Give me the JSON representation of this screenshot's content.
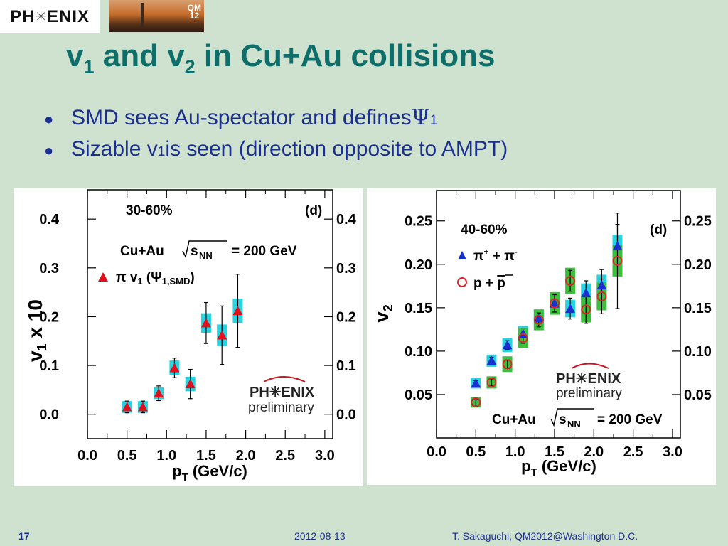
{
  "header": {
    "logo_left": "PH",
    "logo_star": "✳",
    "logo_right": "ENIX",
    "photo_label_1": "QM",
    "photo_label_2": "12"
  },
  "title": {
    "v1": "v",
    "sub1": "1",
    "and": " and v",
    "sub2": "2",
    "rest": " in Cu+Au collisions"
  },
  "bullets": [
    {
      "pre": "SMD sees Au-spectator and defines ",
      "psi": "Ψ",
      "sub": "1",
      "post": ""
    },
    {
      "pre": "Sizable v",
      "psi": "",
      "sub": "1",
      "post": " is seen (direction opposite to AMPT)"
    }
  ],
  "footer": {
    "page": "17",
    "date": "2012-08-13",
    "author": "T. Sakaguchi, QM2012@Washington D.C."
  },
  "chart_data": [
    {
      "type": "scatter",
      "panel": "(d)",
      "centrality": "30-60%",
      "system": "Cu+Au",
      "energy": "= 200 GeV",
      "sqrt_label": "s",
      "sqrt_sub": "NN",
      "ylabel": "v",
      "ylabel_sub": "1",
      "ylabel_post": " x 10",
      "xlabel": "p",
      "xlabel_sub": "T",
      "xlabel_post": " (GeV/c)",
      "xlim": [
        0,
        3.1
      ],
      "ylim": [
        -0.05,
        0.46
      ],
      "xticks": [
        "0.0",
        "0.5",
        "1.0",
        "1.5",
        "2.0",
        "2.5",
        "3.0"
      ],
      "xtick_values": [
        0,
        0.5,
        1.0,
        1.5,
        2.0,
        2.5,
        3.0
      ],
      "yticks": [
        "0.0",
        "0.1",
        "0.2",
        "0.3",
        "0.4"
      ],
      "ytick_values": [
        0,
        0.1,
        0.2,
        0.3,
        0.4
      ],
      "legend": [
        {
          "label": "π v",
          "sub": "1",
          "post": " (Ψ",
          "sub2": "1,SMD",
          "end": ")"
        }
      ],
      "watermark": {
        "logo": "PH✳ENIX",
        "text": "preliminary"
      },
      "series": [
        {
          "name": "π v1 (Ψ1,SMD)",
          "marker": "triangle",
          "color": "#e0101c",
          "sys_color": "#27d3e0",
          "x": [
            0.5,
            0.7,
            0.9,
            1.1,
            1.3,
            1.5,
            1.7,
            1.9
          ],
          "y": [
            0.015,
            0.015,
            0.043,
            0.095,
            0.062,
            0.187,
            0.162,
            0.212
          ],
          "err": [
            0.012,
            0.012,
            0.015,
            0.02,
            0.03,
            0.042,
            0.06,
            0.075
          ],
          "sys": [
            0.012,
            0.012,
            0.012,
            0.015,
            0.015,
            0.02,
            0.022,
            0.025
          ]
        }
      ]
    },
    {
      "type": "scatter",
      "panel": "(d)",
      "centrality": "40-60%",
      "system": "Cu+Au",
      "energy": "= 200 GeV",
      "sqrt_label": "s",
      "sqrt_sub": "NN",
      "ylabel": "v",
      "ylabel_sub": "2",
      "xlabel": "p",
      "xlabel_sub": "T",
      "xlabel_post": " (GeV/c)",
      "xlim": [
        0,
        3.1
      ],
      "ylim": [
        0,
        0.285
      ],
      "xticks": [
        "0.0",
        "0.5",
        "1.0",
        "1.5",
        "2.0",
        "2.5",
        "3.0"
      ],
      "xtick_values": [
        0,
        0.5,
        1.0,
        1.5,
        2.0,
        2.5,
        3.0
      ],
      "yticks": [
        "0.05",
        "0.10",
        "0.15",
        "0.20",
        "0.25"
      ],
      "ytick_values": [
        0.05,
        0.1,
        0.15,
        0.2,
        0.25
      ],
      "legend": [
        {
          "label": "π",
          "sup": "+",
          "mid": " + π",
          "sup2": "-"
        },
        {
          "label": "p + ",
          "over": "p"
        }
      ],
      "watermark": {
        "logo": "PH✳ENIX",
        "text": "preliminary"
      },
      "series": [
        {
          "name": "π+ + π-",
          "marker": "triangle",
          "color": "#1a2fd0",
          "sys_color": "#27d3e0",
          "x": [
            0.5,
            0.7,
            0.9,
            1.1,
            1.3,
            1.5,
            1.7,
            1.9,
            2.1,
            2.3
          ],
          "y": [
            0.063,
            0.089,
            0.107,
            0.12,
            0.138,
            0.155,
            0.149,
            0.167,
            0.176,
            0.221
          ],
          "err": [
            0.003,
            0.004,
            0.005,
            0.006,
            0.008,
            0.01,
            0.012,
            0.014,
            0.018,
            0.025
          ],
          "sys": [
            0.006,
            0.007,
            0.008,
            0.009,
            0.01,
            0.01,
            0.01,
            0.011,
            0.012,
            0.013
          ]
        },
        {
          "name": "p + pbar",
          "marker": "circle",
          "color": "#d8262a",
          "sys_color": "#3cbf3c",
          "x": [
            0.5,
            0.7,
            0.9,
            1.1,
            1.3,
            1.5,
            1.7,
            1.9,
            2.1,
            2.3
          ],
          "y": [
            0.041,
            0.064,
            0.085,
            0.115,
            0.136,
            0.155,
            0.181,
            0.148,
            0.163,
            0.204
          ],
          "err": [
            0.003,
            0.004,
            0.005,
            0.006,
            0.008,
            0.01,
            0.012,
            0.016,
            0.02,
            0.055
          ],
          "sys": [
            0.006,
            0.007,
            0.009,
            0.011,
            0.012,
            0.013,
            0.015,
            0.015,
            0.016,
            0.018
          ]
        }
      ]
    }
  ]
}
